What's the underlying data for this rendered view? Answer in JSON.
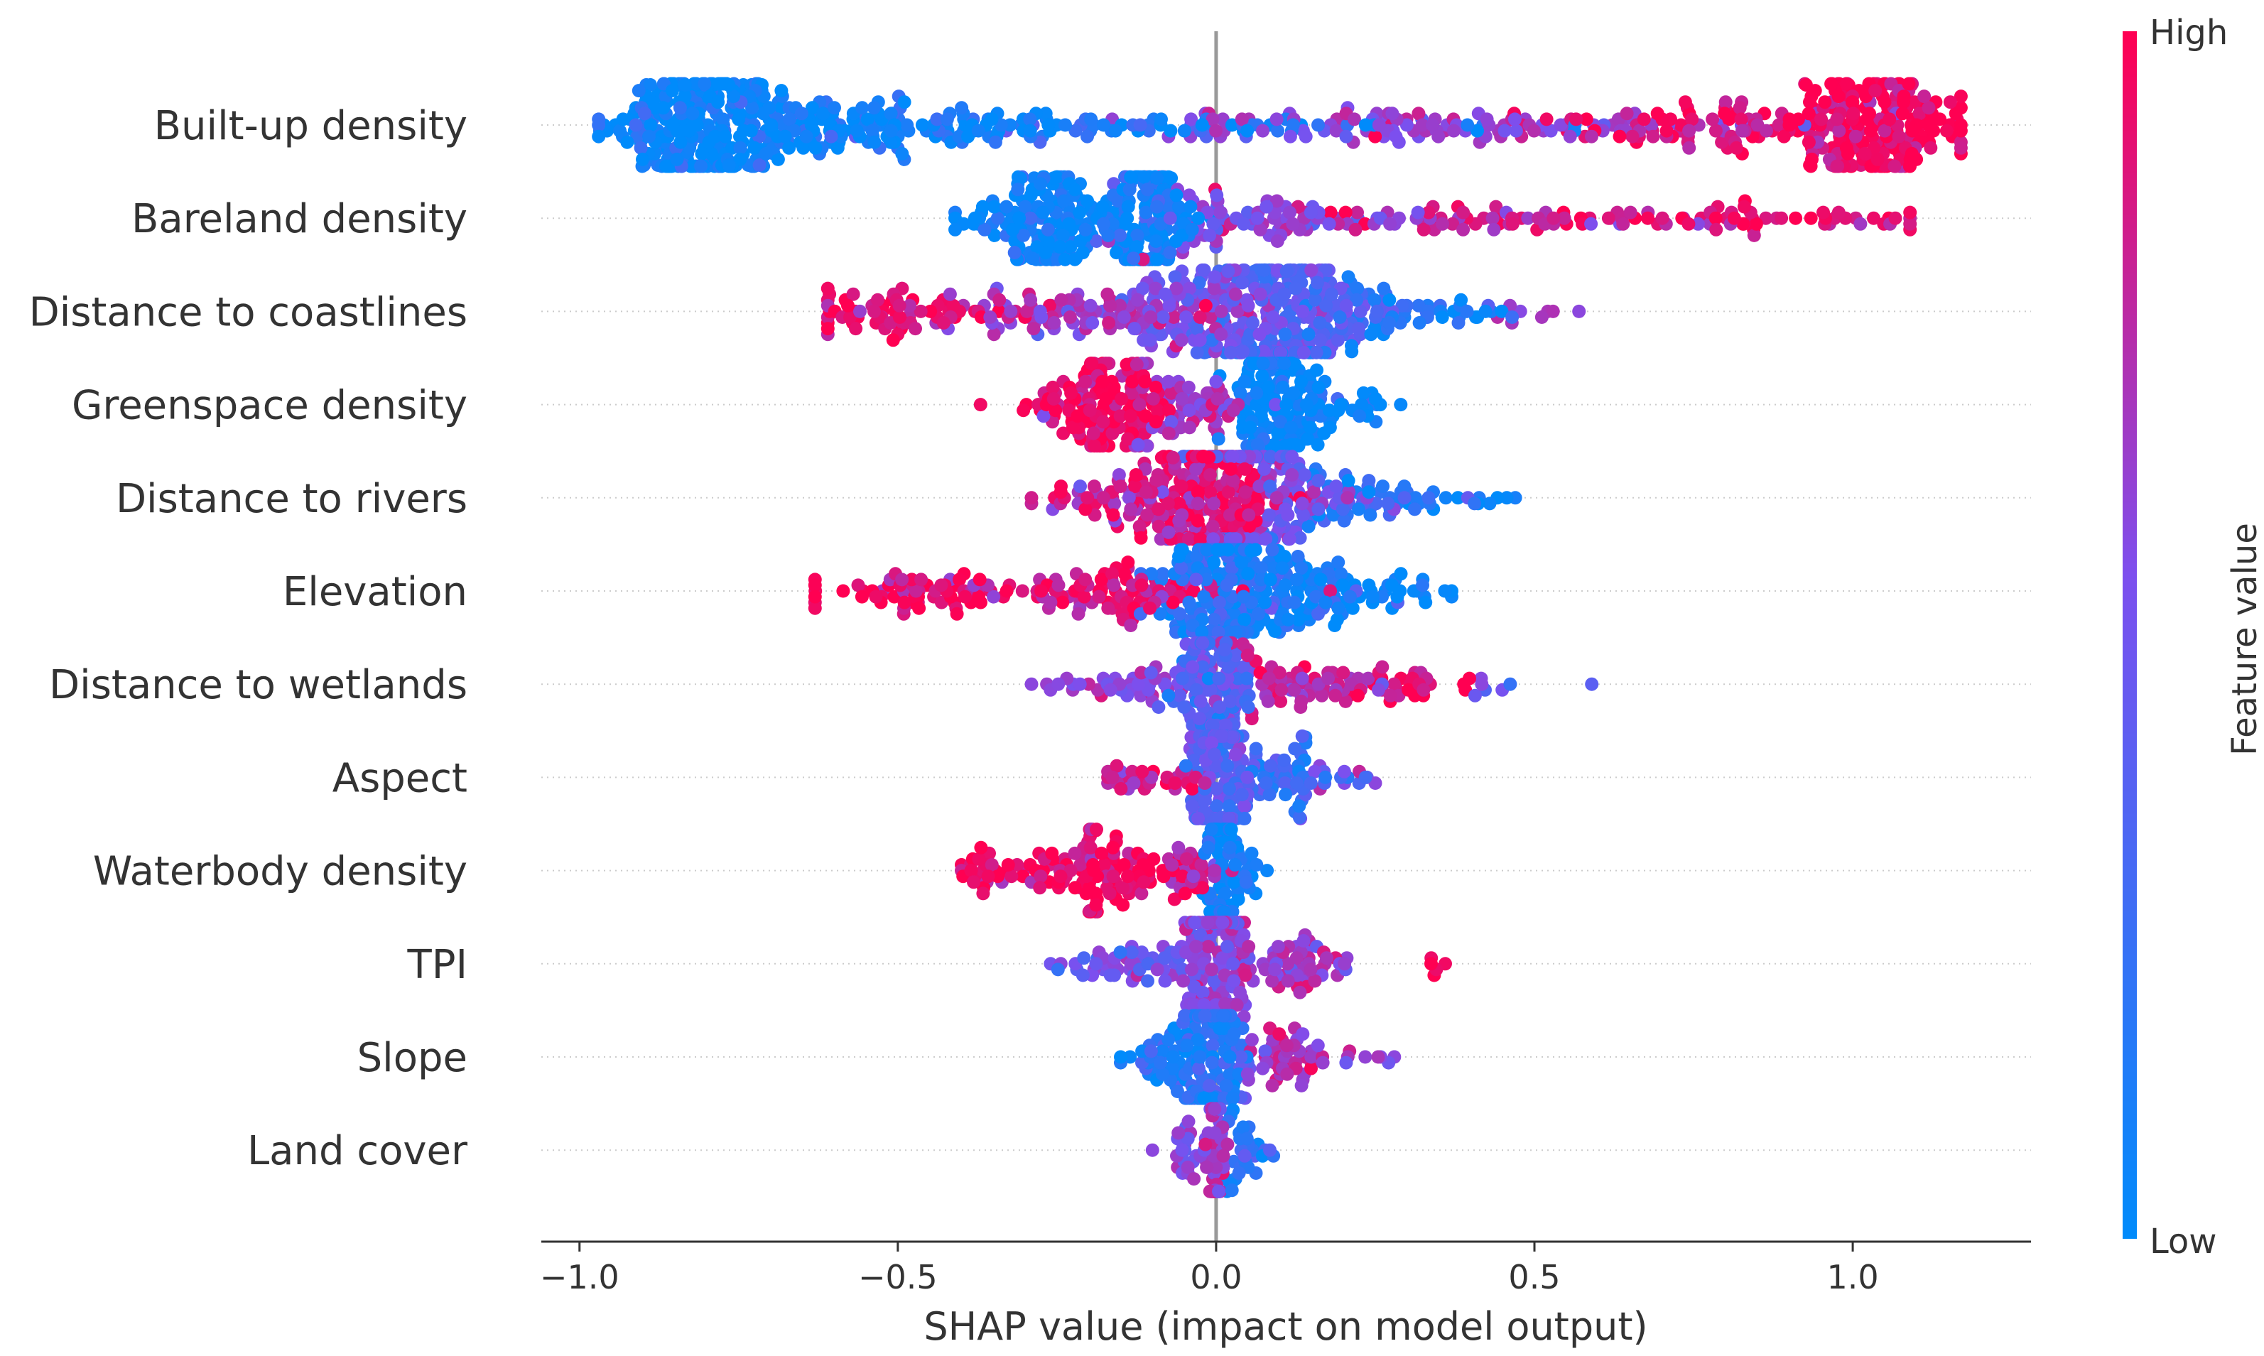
{
  "chart_data": {
    "type": "scatter",
    "subtype": "shap-beeswarm",
    "title": "",
    "xlabel": "SHAP value (impact on model output)",
    "ylabel": "",
    "xlim": [
      -1.06,
      1.28
    ],
    "xticks": [
      -1.0,
      -0.5,
      0.0,
      0.5,
      1.0
    ],
    "xtick_labels": [
      "−1.0",
      "−0.5",
      "0.0",
      "0.5",
      "1.0"
    ],
    "zero_line": 0.0,
    "colorbar": {
      "label": "Feature value",
      "high_label": "High",
      "low_label": "Low",
      "low_color": "#008bfb",
      "high_color": "#ff0052"
    },
    "features": [
      {
        "name": "Built-up density",
        "min": -0.97,
        "max": 1.17,
        "seed": 11,
        "clusters": [
          {
            "c": -0.82,
            "s": 0.06,
            "n": 200,
            "v": 0.02
          },
          {
            "c": -0.62,
            "s": 0.14,
            "n": 150,
            "v": 0.05
          },
          {
            "c": -0.2,
            "s": 0.3,
            "n": 90,
            "v": 0.15
          },
          {
            "c": 0.35,
            "s": 0.25,
            "n": 100,
            "v": 0.65
          },
          {
            "c": 0.75,
            "s": 0.15,
            "n": 80,
            "v": 0.9
          },
          {
            "c": 1.03,
            "s": 0.07,
            "n": 200,
            "v": 0.98
          }
        ]
      },
      {
        "name": "Bareland density",
        "min": -0.41,
        "max": 1.09,
        "seed": 23,
        "clusters": [
          {
            "c": -0.25,
            "s": 0.05,
            "n": 110,
            "v": 0.03
          },
          {
            "c": -0.11,
            "s": 0.03,
            "n": 130,
            "v": 0.06
          },
          {
            "c": -0.32,
            "s": 0.05,
            "n": 40,
            "v": 0.03
          },
          {
            "c": 0.05,
            "s": 0.1,
            "n": 80,
            "v": 0.55
          },
          {
            "c": 0.45,
            "s": 0.25,
            "n": 90,
            "v": 0.85
          },
          {
            "c": 0.9,
            "s": 0.1,
            "n": 25,
            "v": 0.95
          }
        ]
      },
      {
        "name": "Distance to coastlines",
        "min": -0.61,
        "max": 0.57,
        "seed": 37,
        "clusters": [
          {
            "c": -0.5,
            "s": 0.07,
            "n": 60,
            "v": 0.95
          },
          {
            "c": -0.2,
            "s": 0.12,
            "n": 90,
            "v": 0.7
          },
          {
            "c": 0.0,
            "s": 0.08,
            "n": 130,
            "v": 0.5
          },
          {
            "c": 0.12,
            "s": 0.06,
            "n": 190,
            "v": 0.35
          },
          {
            "c": 0.32,
            "s": 0.08,
            "n": 50,
            "v": 0.15
          },
          {
            "c": 0.5,
            "s": 0.04,
            "n": 8,
            "v": 0.6
          }
        ]
      },
      {
        "name": "Greenspace density",
        "min": -0.37,
        "max": 0.29,
        "seed": 41,
        "clusters": [
          {
            "c": -0.17,
            "s": 0.05,
            "n": 130,
            "v": 0.95
          },
          {
            "c": -0.05,
            "s": 0.05,
            "n": 60,
            "v": 0.7
          },
          {
            "c": 0.09,
            "s": 0.03,
            "n": 170,
            "v": 0.05
          },
          {
            "c": 0.2,
            "s": 0.04,
            "n": 30,
            "v": 0.03
          }
        ]
      },
      {
        "name": "Distance to rivers",
        "min": -0.29,
        "max": 0.47,
        "seed": 53,
        "clusters": [
          {
            "c": -0.15,
            "s": 0.07,
            "n": 60,
            "v": 0.8
          },
          {
            "c": -0.02,
            "s": 0.05,
            "n": 180,
            "v": 0.9
          },
          {
            "c": 0.07,
            "s": 0.06,
            "n": 150,
            "v": 0.5
          },
          {
            "c": 0.22,
            "s": 0.08,
            "n": 60,
            "v": 0.2
          },
          {
            "c": 0.4,
            "s": 0.04,
            "n": 6,
            "v": 0.1
          }
        ]
      },
      {
        "name": "Elevation",
        "min": -0.63,
        "max": 0.37,
        "seed": 67,
        "clusters": [
          {
            "c": -0.45,
            "s": 0.1,
            "n": 70,
            "v": 0.95
          },
          {
            "c": -0.15,
            "s": 0.08,
            "n": 80,
            "v": 0.9
          },
          {
            "c": 0.01,
            "s": 0.05,
            "n": 200,
            "v": 0.15
          },
          {
            "c": 0.15,
            "s": 0.06,
            "n": 90,
            "v": 0.05
          },
          {
            "c": 0.3,
            "s": 0.04,
            "n": 12,
            "v": 0.05
          }
        ]
      },
      {
        "name": "Distance to wetlands",
        "min": -0.29,
        "max": 0.59,
        "seed": 71,
        "clusters": [
          {
            "c": -0.15,
            "s": 0.07,
            "n": 40,
            "v": 0.6
          },
          {
            "c": 0.0,
            "s": 0.03,
            "n": 150,
            "v": 0.4
          },
          {
            "c": 0.12,
            "s": 0.07,
            "n": 60,
            "v": 0.8
          },
          {
            "c": 0.3,
            "s": 0.06,
            "n": 25,
            "v": 0.95
          },
          {
            "c": 0.45,
            "s": 0.05,
            "n": 6,
            "v": 0.4
          }
        ]
      },
      {
        "name": "Aspect",
        "min": -0.17,
        "max": 0.25,
        "seed": 83,
        "clusters": [
          {
            "c": -0.1,
            "s": 0.04,
            "n": 30,
            "v": 0.8
          },
          {
            "c": 0.0,
            "s": 0.025,
            "n": 160,
            "v": 0.4
          },
          {
            "c": 0.09,
            "s": 0.05,
            "n": 60,
            "v": 0.3
          },
          {
            "c": 0.18,
            "s": 0.03,
            "n": 10,
            "v": 0.6
          }
        ]
      },
      {
        "name": "Waterbody density",
        "min": -0.4,
        "max": 0.08,
        "seed": 97,
        "clusters": [
          {
            "c": -0.37,
            "s": 0.02,
            "n": 20,
            "v": 0.98
          },
          {
            "c": -0.2,
            "s": 0.06,
            "n": 110,
            "v": 0.95
          },
          {
            "c": -0.04,
            "s": 0.03,
            "n": 30,
            "v": 0.8
          },
          {
            "c": 0.01,
            "s": 0.012,
            "n": 140,
            "v": 0.05
          },
          {
            "c": 0.05,
            "s": 0.015,
            "n": 10,
            "v": 0.05
          }
        ]
      },
      {
        "name": "TPI",
        "min": -0.26,
        "max": 0.36,
        "seed": 101,
        "clusters": [
          {
            "c": -0.1,
            "s": 0.07,
            "n": 60,
            "v": 0.5
          },
          {
            "c": 0.0,
            "s": 0.025,
            "n": 170,
            "v": 0.6
          },
          {
            "c": 0.12,
            "s": 0.05,
            "n": 60,
            "v": 0.7
          },
          {
            "c": 0.34,
            "s": 0.01,
            "n": 4,
            "v": 0.95
          }
        ]
      },
      {
        "name": "Slope",
        "min": -0.15,
        "max": 0.28,
        "seed": 113,
        "clusters": [
          {
            "c": -0.06,
            "s": 0.04,
            "n": 60,
            "v": 0.15
          },
          {
            "c": 0.0,
            "s": 0.02,
            "n": 160,
            "v": 0.2
          },
          {
            "c": 0.1,
            "s": 0.04,
            "n": 50,
            "v": 0.7
          },
          {
            "c": 0.24,
            "s": 0.02,
            "n": 6,
            "v": 0.6
          }
        ]
      },
      {
        "name": "Land cover",
        "min": -0.1,
        "max": 0.09,
        "seed": 127,
        "clusters": [
          {
            "c": -0.04,
            "s": 0.02,
            "n": 25,
            "v": 0.6
          },
          {
            "c": 0.0,
            "s": 0.006,
            "n": 120,
            "v": 0.7
          },
          {
            "c": 0.05,
            "s": 0.02,
            "n": 30,
            "v": 0.2
          }
        ]
      }
    ]
  }
}
